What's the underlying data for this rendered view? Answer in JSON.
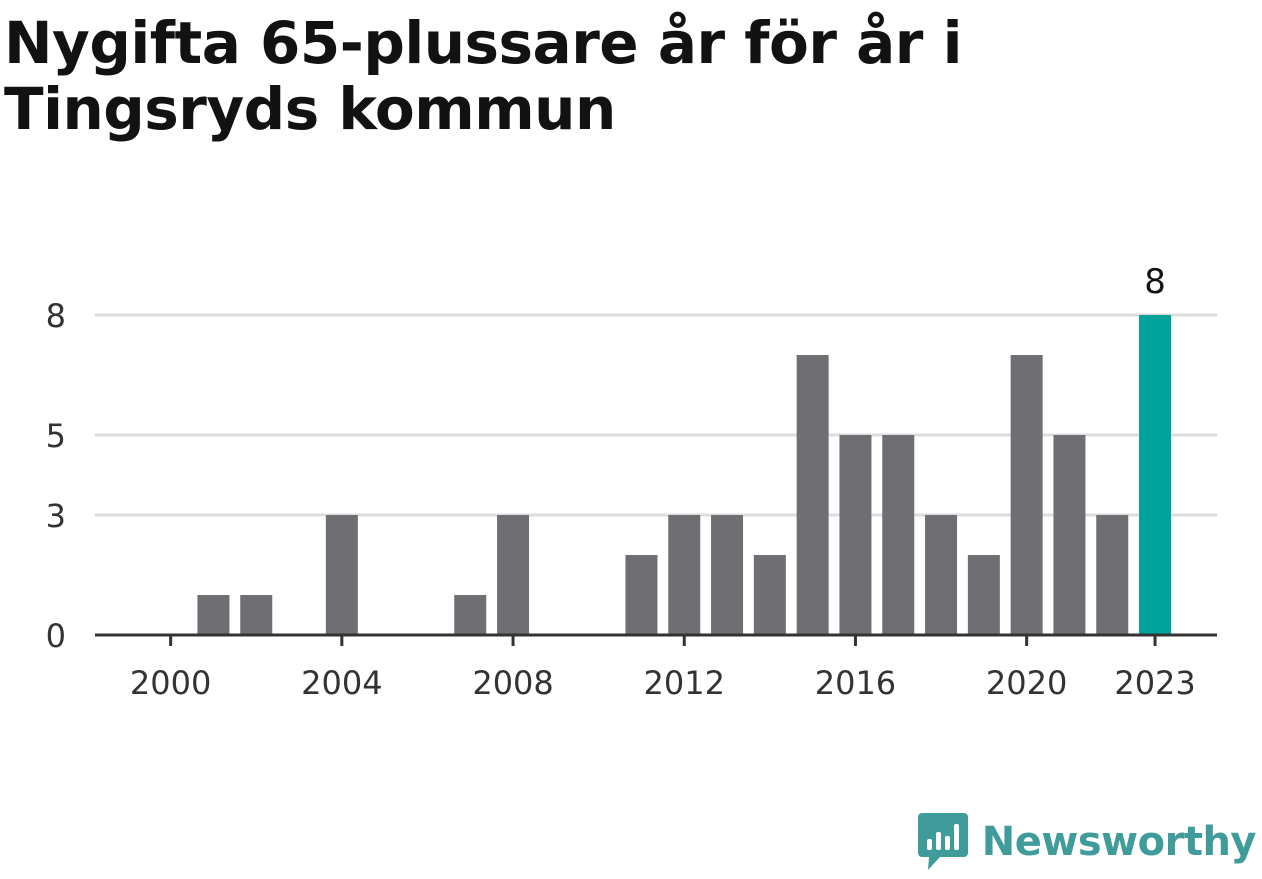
{
  "title": "Nygifta 65-plussare år för år i Tingsryds kommun",
  "brand": {
    "name": "Newsworthy",
    "icon": "newsworthy-logo-icon",
    "color": "#3f9c9a"
  },
  "colors": {
    "bar": "#6f6e73",
    "highlight": "#00a39a",
    "grid": "#dddddd",
    "axis": "#333333"
  },
  "chart_data": {
    "type": "bar",
    "title": "Nygifta 65-plussare år för år i Tingsryds kommun",
    "xlabel": "",
    "ylabel": "",
    "categories": [
      "2000",
      "2001",
      "2002",
      "2003",
      "2004",
      "2005",
      "2006",
      "2007",
      "2008",
      "2009",
      "2010",
      "2011",
      "2012",
      "2013",
      "2014",
      "2015",
      "2016",
      "2017",
      "2018",
      "2019",
      "2020",
      "2021",
      "2022",
      "2023"
    ],
    "values": [
      0,
      1,
      1,
      0,
      3,
      0,
      0,
      1,
      3,
      0,
      0,
      2,
      3,
      3,
      2,
      7,
      5,
      5,
      3,
      2,
      7,
      5,
      3,
      8
    ],
    "ylim": [
      0,
      8
    ],
    "yticks": [
      0,
      3,
      5,
      8
    ],
    "xticks": [
      "2000",
      "2004",
      "2008",
      "2012",
      "2016",
      "2020",
      "2023"
    ],
    "highlight": {
      "category": "2023",
      "label": "8"
    },
    "grid": true,
    "legend": "none"
  }
}
